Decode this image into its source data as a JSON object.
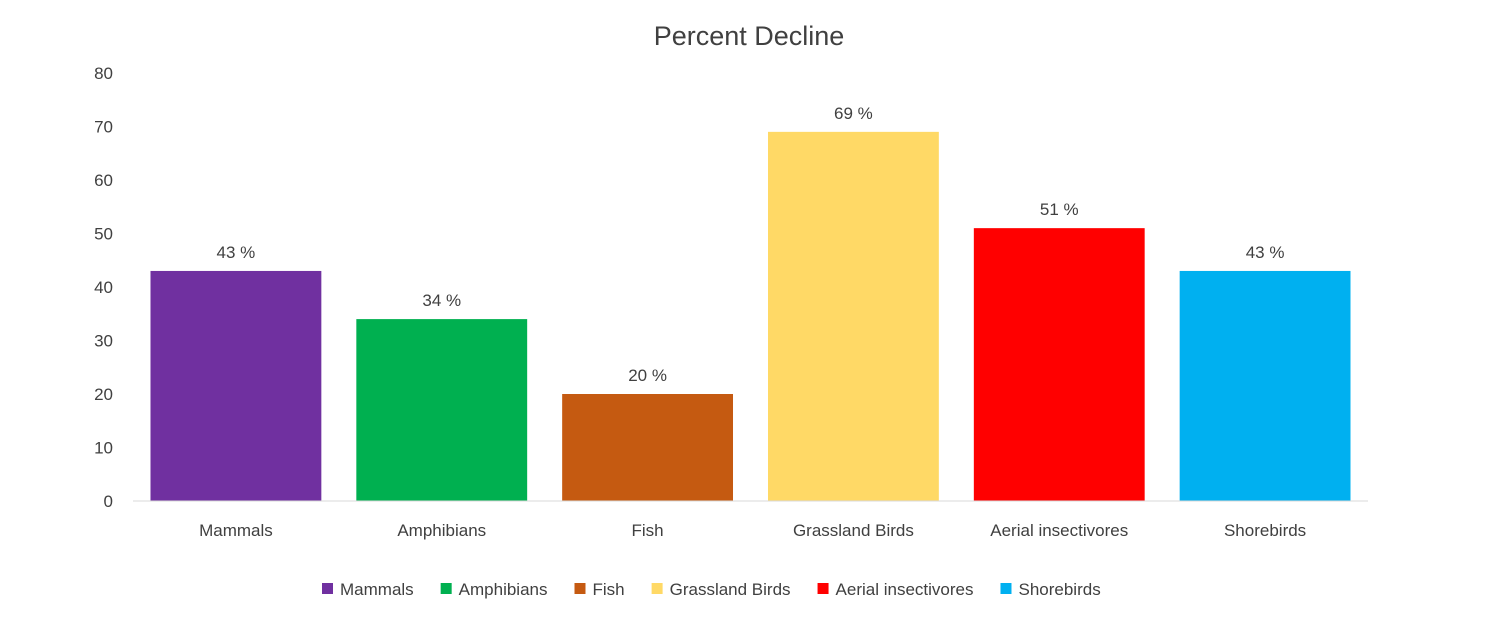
{
  "chart_data": {
    "type": "bar",
    "title": "Percent Decline",
    "xlabel": "",
    "ylabel": "",
    "categories": [
      "Mammals",
      "Amphibians",
      "Fish",
      "Grassland Birds",
      "Aerial insectivores",
      "Shorebirds"
    ],
    "values": [
      43,
      34,
      20,
      69,
      51,
      43
    ],
    "data_labels": [
      "43 %",
      "34 %",
      "20 %",
      "69 %",
      "51 %",
      "43 %"
    ],
    "colors": [
      "#7030A0",
      "#00B050",
      "#C55A11",
      "#FFD966",
      "#FF0000",
      "#00B0F0"
    ],
    "ylim": [
      0,
      80
    ],
    "yticks": [
      0,
      10,
      20,
      30,
      40,
      50,
      60,
      70,
      80
    ],
    "grid": false,
    "legend": {
      "placement": "bottom",
      "entries": [
        "Mammals",
        "Amphibians",
        "Fish",
        "Grassland Birds",
        "Aerial insectivores",
        "Shorebirds"
      ]
    }
  }
}
